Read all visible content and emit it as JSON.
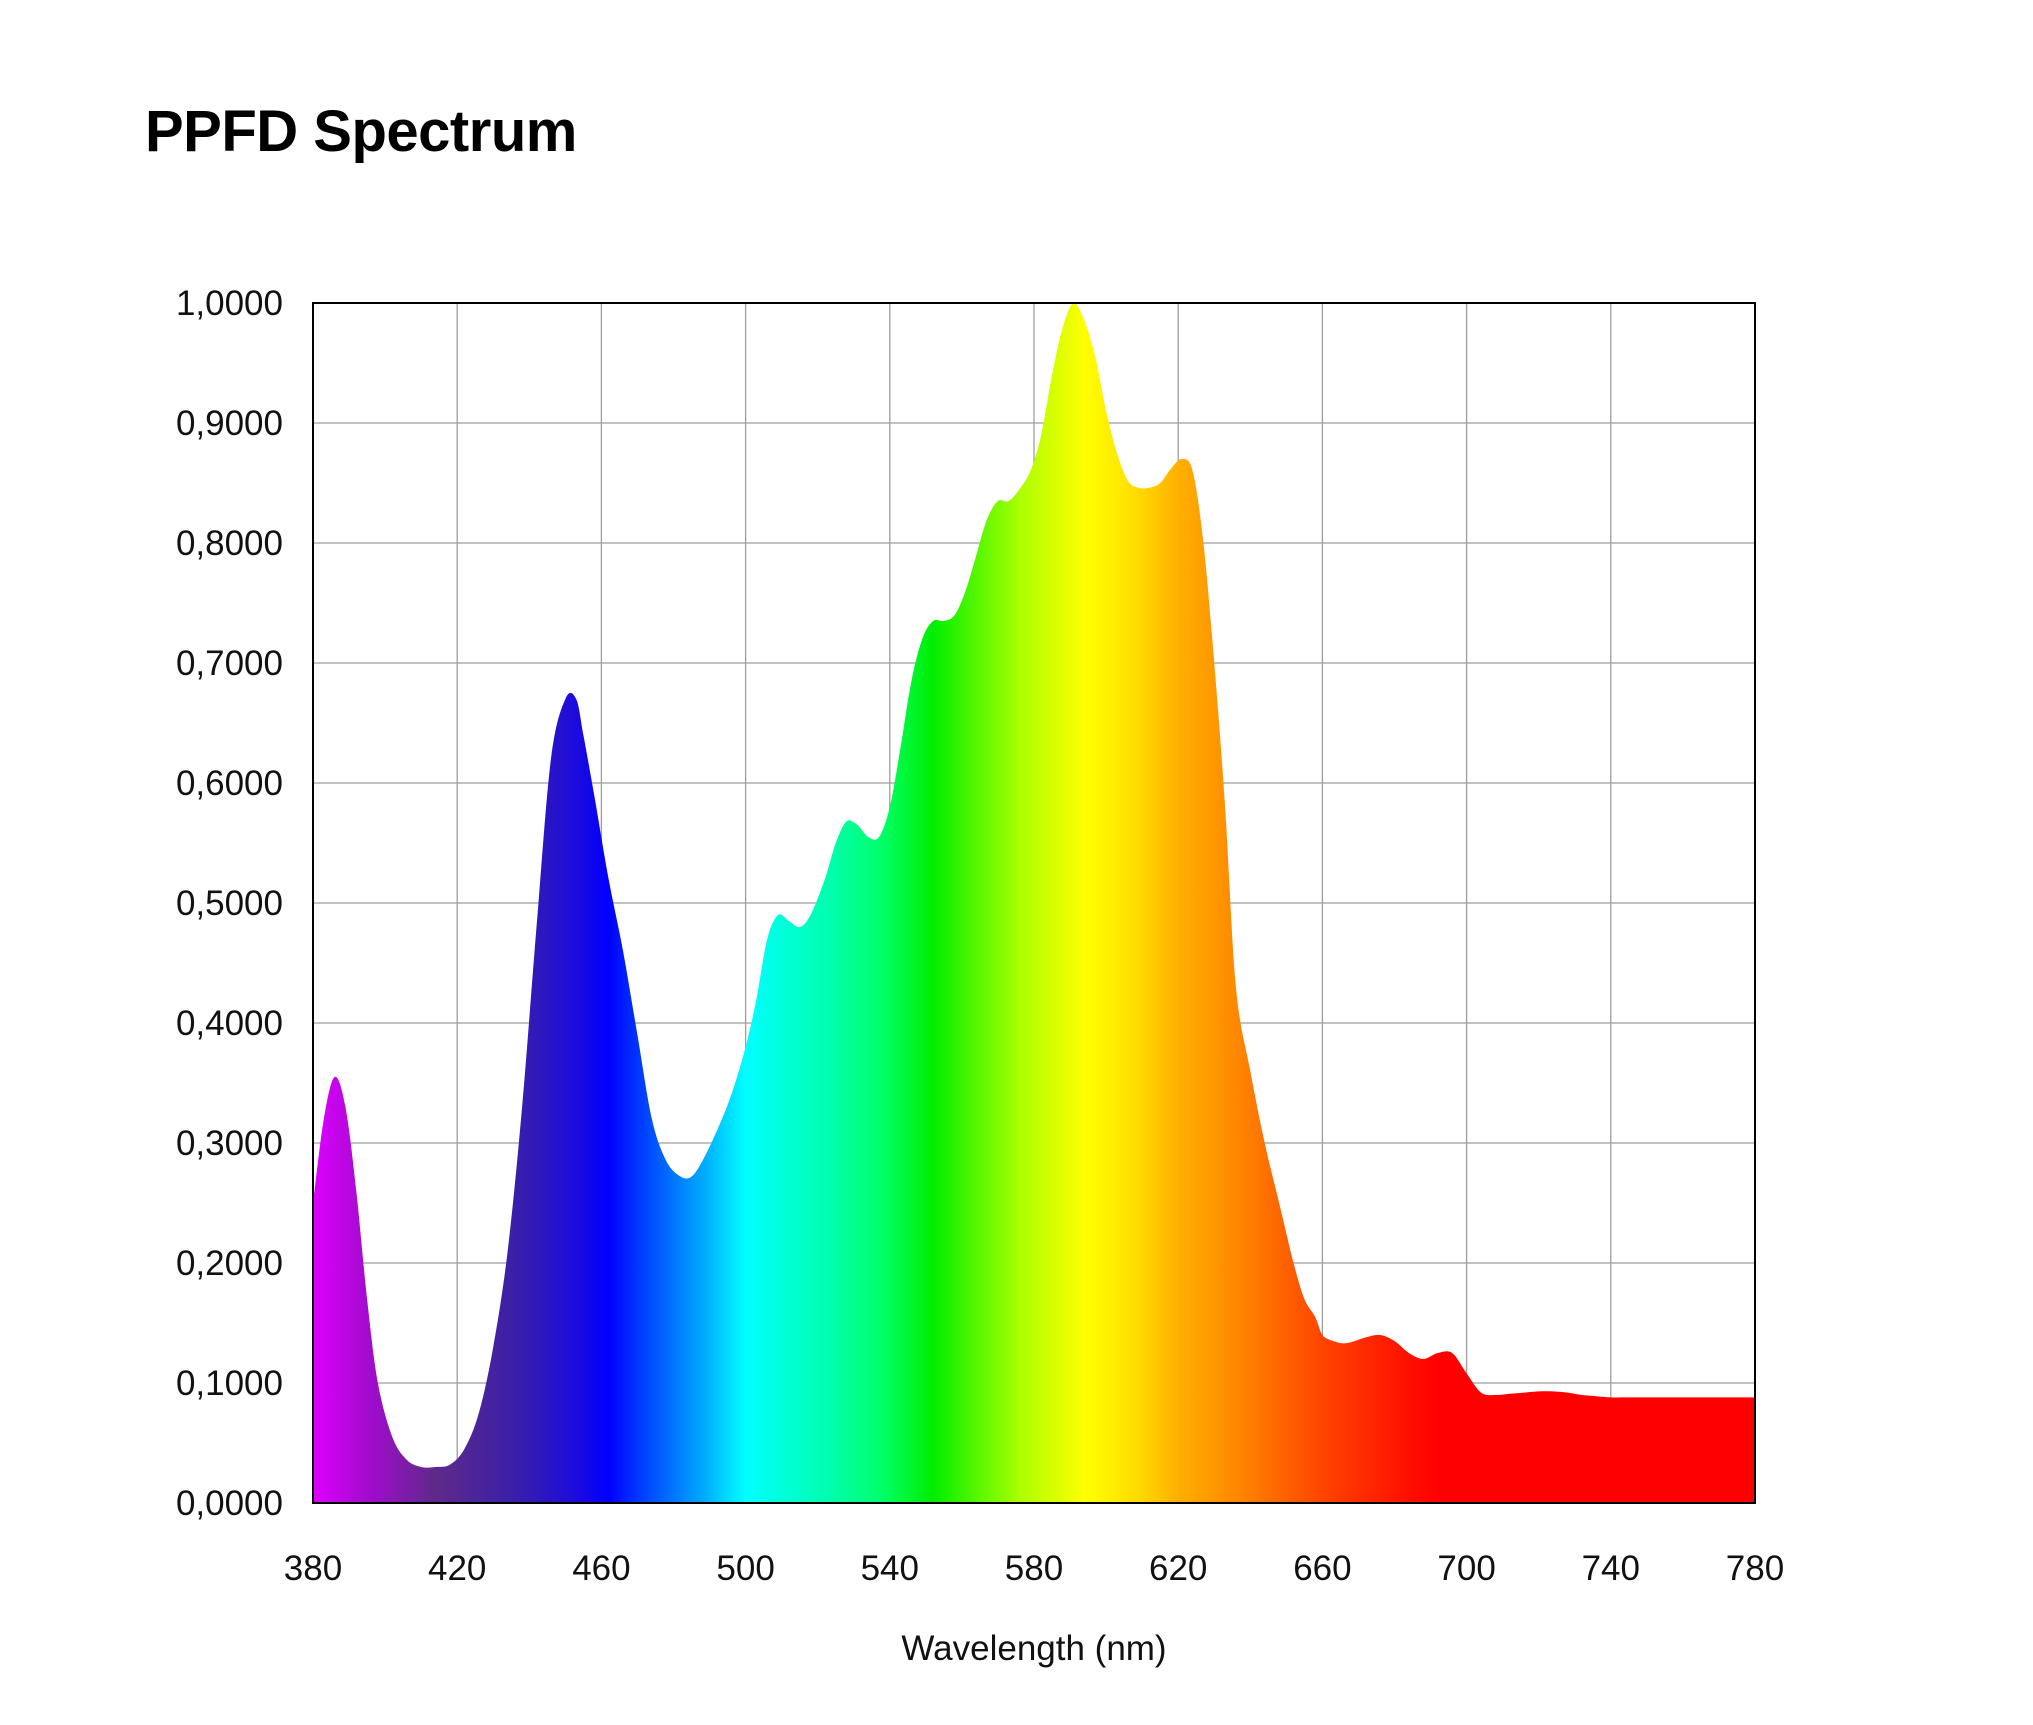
{
  "chart_data": {
    "type": "area",
    "title": "PPFD Spectrum",
    "xlabel": "Wavelength (nm)",
    "ylabel": "",
    "xlim": [
      380,
      780
    ],
    "ylim": [
      0,
      1
    ],
    "grid": true,
    "x_ticks": [
      380,
      420,
      460,
      500,
      540,
      580,
      620,
      660,
      700,
      740,
      780
    ],
    "x_tick_labels": [
      "380",
      "420",
      "460",
      "500",
      "540",
      "580",
      "620",
      "660",
      "700",
      "740",
      "780"
    ],
    "y_ticks": [
      0,
      0.1,
      0.2,
      0.3,
      0.4,
      0.5,
      0.6,
      0.7,
      0.8,
      0.9,
      1.0
    ],
    "y_tick_labels": [
      "0,0000",
      "0,1000",
      "0,2000",
      "0,3000",
      "0,4000",
      "0,5000",
      "0,6000",
      "0,7000",
      "0,8000",
      "0,9000",
      "1,0000"
    ],
    "series": [
      {
        "x": [
          380,
          383,
          386,
          389,
          392,
          395,
          398,
          402,
          406,
          410,
          414,
          418,
          422,
          426,
          430,
          434,
          438,
          442,
          446,
          450,
          453,
          455,
          458,
          462,
          466,
          470,
          474,
          478,
          482,
          485,
          488,
          492,
          496,
          500,
          503,
          506,
          509,
          512,
          515,
          518,
          522,
          525,
          528,
          531,
          534,
          537,
          540,
          543,
          546,
          549,
          552,
          555,
          558,
          561,
          564,
          567,
          570,
          573,
          576,
          579,
          582,
          585,
          588,
          591,
          594,
          597,
          600,
          603,
          606,
          609,
          612,
          615,
          618,
          621,
          624,
          627,
          630,
          633,
          636,
          640,
          644,
          648,
          652,
          655,
          658,
          660,
          663,
          666,
          669,
          672,
          676,
          680,
          684,
          688,
          692,
          696,
          700,
          704,
          708,
          712,
          716,
          720,
          724,
          728,
          732,
          736,
          740,
          744,
          747,
          750,
          753,
          756,
          760,
          764,
          768,
          772,
          776,
          780
        ],
        "values": [
          0.25,
          0.32,
          0.355,
          0.33,
          0.26,
          0.17,
          0.1,
          0.055,
          0.036,
          0.03,
          0.03,
          0.032,
          0.045,
          0.075,
          0.13,
          0.21,
          0.33,
          0.48,
          0.62,
          0.67,
          0.67,
          0.64,
          0.59,
          0.52,
          0.46,
          0.39,
          0.32,
          0.285,
          0.272,
          0.272,
          0.285,
          0.31,
          0.34,
          0.38,
          0.42,
          0.47,
          0.49,
          0.485,
          0.48,
          0.49,
          0.52,
          0.55,
          0.568,
          0.565,
          0.555,
          0.555,
          0.58,
          0.63,
          0.685,
          0.72,
          0.735,
          0.735,
          0.74,
          0.76,
          0.79,
          0.82,
          0.835,
          0.835,
          0.845,
          0.86,
          0.89,
          0.94,
          0.98,
          1.0,
          0.985,
          0.955,
          0.91,
          0.875,
          0.852,
          0.846,
          0.846,
          0.85,
          0.862,
          0.87,
          0.86,
          0.8,
          0.7,
          0.58,
          0.43,
          0.36,
          0.3,
          0.25,
          0.2,
          0.17,
          0.155,
          0.14,
          0.135,
          0.133,
          0.135,
          0.138,
          0.14,
          0.135,
          0.125,
          0.12,
          0.125,
          0.125,
          0.108,
          0.092,
          0.09,
          0.091,
          0.092,
          0.093,
          0.093,
          0.092,
          0.09,
          0.089,
          0.088,
          0.088,
          0.088,
          0.088,
          0.088,
          0.088,
          0.088,
          0.088,
          0.088,
          0.088,
          0.088,
          0.088
        ]
      }
    ],
    "colors": {
      "background": "#ffffff",
      "grid": "#9e9e9e",
      "frame": "#000000",
      "spectrum": [
        "#dd00ff",
        "#5a2a8a",
        "#0000ff",
        "#00ffff",
        "#00ee00",
        "#ffff00",
        "#ff9900",
        "#ff0000"
      ]
    }
  }
}
